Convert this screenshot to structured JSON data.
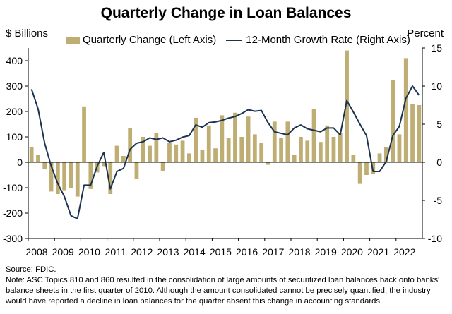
{
  "header": {
    "title": "Quarterly Change in Loan Balances",
    "left_unit": "$ Billions",
    "right_unit": "Percent"
  },
  "notes": {
    "source": "Source: FDIC.",
    "note": "Note: ASC Topics 810 and 860 resulted in the consolidation of large amounts of securitized loan balances back onto banks' balance sheets in the first quarter of 2010. Although the amount consolidated cannot be precisely quantified, the industry would have reported a decline in loan balances for the quarter absent this change in accounting standards."
  },
  "colors": {
    "bar": "#BFAE74",
    "line": "#1B3350",
    "axis": "#000000"
  },
  "chart_data": {
    "type": "bar",
    "title": "Quarterly Change in Loan Balances",
    "ylabel_left": "$ Billions",
    "ylabel_right": "Percent",
    "ylim_left": [
      -300,
      450
    ],
    "ylim_right": [
      -10,
      15
    ],
    "yticks_left": [
      "400",
      "300",
      "200",
      "100",
      "0",
      "-100",
      "-200",
      "-300"
    ],
    "yticks_right": [
      "15",
      "10",
      "5",
      "0",
      "-5",
      "-10"
    ],
    "year_labels": [
      "2008",
      "2009",
      "2010",
      "2011",
      "2012",
      "2013",
      "2014",
      "2015",
      "2016",
      "2017",
      "2018",
      "2019",
      "2020",
      "2021",
      "2022"
    ],
    "legend_position": "top",
    "grid": false,
    "categories": [
      "2008Q1",
      "2008Q2",
      "2008Q3",
      "2008Q4",
      "2009Q1",
      "2009Q2",
      "2009Q3",
      "2009Q4",
      "2010Q1",
      "2010Q2",
      "2010Q3",
      "2010Q4",
      "2011Q1",
      "2011Q2",
      "2011Q3",
      "2011Q4",
      "2012Q1",
      "2012Q2",
      "2012Q3",
      "2012Q4",
      "2013Q1",
      "2013Q2",
      "2013Q3",
      "2013Q4",
      "2014Q1",
      "2014Q2",
      "2014Q3",
      "2014Q4",
      "2015Q1",
      "2015Q2",
      "2015Q3",
      "2015Q4",
      "2016Q1",
      "2016Q2",
      "2016Q3",
      "2016Q4",
      "2017Q1",
      "2017Q2",
      "2017Q3",
      "2017Q4",
      "2018Q1",
      "2018Q2",
      "2018Q3",
      "2018Q4",
      "2019Q1",
      "2019Q2",
      "2019Q3",
      "2019Q4",
      "2020Q1",
      "2020Q2",
      "2020Q3",
      "2020Q4",
      "2021Q1",
      "2021Q2",
      "2021Q3",
      "2021Q4",
      "2022Q1",
      "2022Q2",
      "2022Q3",
      "2022Q4"
    ],
    "series": [
      {
        "name": "Quarterly Change (Left Axis)",
        "type": "bar",
        "axis": "left",
        "values": [
          60,
          30,
          -25,
          -115,
          -125,
          -110,
          -100,
          -135,
          220,
          -105,
          -40,
          -15,
          -125,
          65,
          25,
          135,
          -65,
          100,
          65,
          115,
          -35,
          75,
          70,
          85,
          35,
          175,
          50,
          145,
          55,
          185,
          95,
          195,
          100,
          180,
          110,
          75,
          -10,
          160,
          95,
          160,
          30,
          100,
          85,
          210,
          80,
          145,
          100,
          115,
          440,
          30,
          -85,
          -50,
          -45,
          35,
          60,
          325,
          110,
          410,
          230,
          225
        ]
      },
      {
        "name": "12-Month Growth Rate (Right Axis)",
        "type": "line",
        "axis": "right",
        "values": [
          9.6,
          7.0,
          2.5,
          -0.5,
          -2.8,
          -4.5,
          -7.0,
          -7.4,
          -3.0,
          -3.0,
          -0.5,
          1.3,
          -3.5,
          -1.2,
          -0.8,
          1.7,
          2.5,
          2.7,
          3.2,
          3.0,
          3.2,
          2.7,
          2.9,
          3.3,
          3.5,
          4.9,
          4.6,
          5.2,
          5.3,
          5.5,
          5.8,
          6.0,
          6.4,
          6.9,
          6.7,
          6.8,
          5.2,
          4.0,
          3.8,
          3.6,
          4.5,
          4.9,
          4.4,
          4.2,
          4.0,
          4.5,
          4.5,
          3.6,
          8.1,
          6.6,
          5.0,
          3.5,
          -1.2,
          -1.2,
          0.1,
          3.5,
          4.7,
          8.4,
          10.0,
          8.8
        ]
      }
    ]
  }
}
